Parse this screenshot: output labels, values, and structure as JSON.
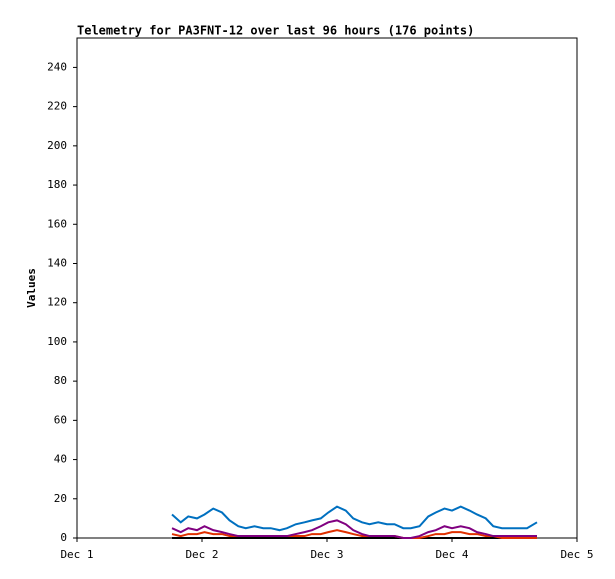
{
  "chart_data": {
    "type": "line",
    "title": "Telemetry for PA3FNT-12 over last 96 hours (176 points)",
    "y_label": "Values",
    "x": [
      0.76,
      0.83,
      0.89,
      0.96,
      1.02,
      1.09,
      1.16,
      1.22,
      1.29,
      1.35,
      1.42,
      1.49,
      1.55,
      1.62,
      1.68,
      1.75,
      1.82,
      1.88,
      1.95,
      2.01,
      2.08,
      2.15,
      2.21,
      2.28,
      2.34,
      2.41,
      2.48,
      2.54,
      2.61,
      2.67,
      2.74,
      2.81,
      2.87,
      2.94,
      3.0,
      3.07,
      3.14,
      3.2,
      3.27,
      3.33,
      3.4,
      3.47,
      3.53,
      3.6,
      3.68
    ],
    "series": [
      {
        "color": "#000000",
        "values": [
          0,
          0,
          0,
          0,
          0,
          0,
          0,
          0,
          0,
          0,
          0,
          0,
          0,
          0,
          0,
          0,
          0,
          0,
          0,
          0,
          0,
          0,
          0,
          0,
          0,
          0,
          0,
          0,
          0,
          0,
          0,
          0,
          0,
          0,
          0,
          0,
          0,
          0,
          0,
          0,
          0,
          0,
          0,
          0,
          0
        ]
      },
      {
        "color": "#e03000",
        "values": [
          2,
          1,
          2,
          2,
          3,
          2,
          2,
          1,
          1,
          1,
          1,
          1,
          1,
          1,
          1,
          1,
          1,
          2,
          2,
          3,
          4,
          3,
          2,
          1,
          1,
          1,
          1,
          1,
          0,
          0,
          0,
          1,
          2,
          2,
          3,
          3,
          2,
          2,
          1,
          1,
          0,
          0,
          0,
          0,
          0
        ]
      },
      {
        "color": "#800080",
        "values": [
          5,
          3,
          5,
          4,
          6,
          4,
          3,
          2,
          1,
          1,
          1,
          1,
          1,
          1,
          1,
          2,
          3,
          4,
          6,
          8,
          9,
          7,
          4,
          2,
          1,
          1,
          1,
          1,
          0,
          0,
          1,
          3,
          4,
          6,
          5,
          6,
          5,
          3,
          2,
          1,
          1,
          1,
          1,
          1,
          1
        ]
      },
      {
        "color": "#0070c0",
        "values": [
          12,
          8,
          11,
          10,
          12,
          15,
          13,
          9,
          6,
          5,
          6,
          5,
          5,
          4,
          5,
          7,
          8,
          9,
          10,
          13,
          16,
          14,
          10,
          8,
          7,
          8,
          7,
          7,
          5,
          5,
          6,
          11,
          13,
          15,
          14,
          16,
          14,
          12,
          10,
          6,
          5,
          5,
          5,
          5,
          8
        ]
      }
    ],
    "xlim": [
      0,
      4
    ],
    "xticks": [
      {
        "value": 0,
        "label": "Dec 1"
      },
      {
        "value": 1,
        "label": "Dec 2"
      },
      {
        "value": 2,
        "label": "Dec 3"
      },
      {
        "value": 3,
        "label": "Dec 4"
      },
      {
        "value": 4,
        "label": "Dec 5"
      }
    ],
    "ylim": [
      0,
      255
    ],
    "yticks": [
      0,
      20,
      40,
      60,
      80,
      100,
      120,
      140,
      160,
      180,
      200,
      220,
      240
    ]
  }
}
